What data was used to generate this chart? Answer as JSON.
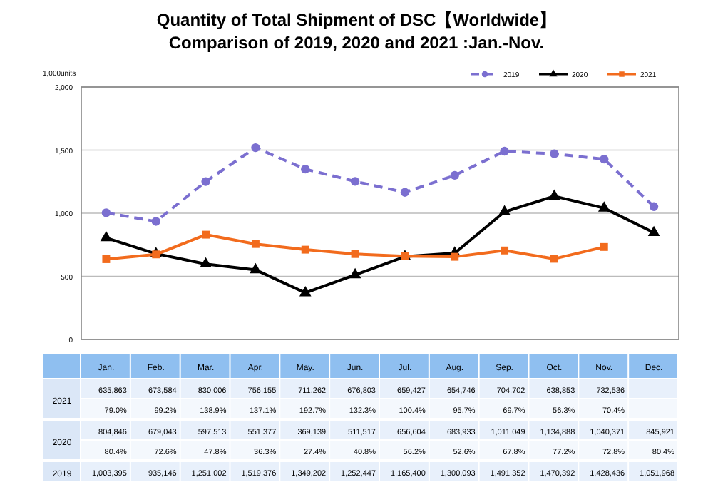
{
  "chart_data": {
    "type": "line",
    "title": "Quantity of Total Shipment of DSC【Worldwide】",
    "subtitle": "Comparison of 2019, 2020 and 2021 :Jan.-Nov.",
    "ylabel": "1,000units",
    "categories": [
      "Jan.",
      "Feb.",
      "Mar.",
      "Apr.",
      "May.",
      "Jun.",
      "Jul.",
      "Aug.",
      "Sep.",
      "Oct.",
      "Nov.",
      "Dec."
    ],
    "series": [
      {
        "name": "2019",
        "color": "#7b6fd0",
        "marker": "circle",
        "line_style": "dashed",
        "values": [
          1003.395,
          935.146,
          1251.002,
          1519.376,
          1349.202,
          1252.447,
          1165.4,
          1300.093,
          1491.352,
          1470.392,
          1428.436,
          1051.968
        ]
      },
      {
        "name": "2020",
        "color": "#000000",
        "marker": "triangle",
        "line_style": "solid",
        "values": [
          804.846,
          679.043,
          597.513,
          551.377,
          369.139,
          511.517,
          656.604,
          683.933,
          1011.049,
          1134.888,
          1040.371,
          845.921
        ]
      },
      {
        "name": "2021",
        "color": "#f26b1d",
        "marker": "square",
        "line_style": "solid",
        "values": [
          635.863,
          673.584,
          830.006,
          756.155,
          711.262,
          676.803,
          659.427,
          654.746,
          704.702,
          638.853,
          732.536,
          null
        ]
      }
    ],
    "annotations": [
      "635,863",
      "673,584",
      "830,006",
      "756,155",
      "711,262",
      "676,803",
      "659,427",
      "654,746",
      "704,702",
      "638,853",
      "732,536",
      "79.0%",
      "99.2%",
      "138.9%",
      "137.1%",
      "192.7%",
      "132.3%",
      "100.4%",
      "95.7%",
      "69.7%",
      "56.3%",
      "70.4%",
      "804,846",
      "679,043",
      "597,513",
      "551,377",
      "369,139",
      "511,517",
      "656,604",
      "683,933",
      "1,011,049",
      "1,134,888",
      "1,040,371",
      "845,921",
      "80.4%",
      "72.6%",
      "47.8%",
      "36.3%",
      "27.4%",
      "40.8%",
      "56.2%",
      "52.6%",
      "67.8%",
      "77.2%",
      "72.8%",
      "80.4%",
      "1,003,395",
      "935,146",
      "1,251,002",
      "1,519,376",
      "1,349,202",
      "1,252,447",
      "1,165,400",
      "1,300,093",
      "1,491,352",
      "1,470,392",
      "1,428,436",
      "1,051,968"
    ],
    "ylim": [
      0,
      2000
    ],
    "yticks": [
      0,
      500,
      {
        "value": 1000,
        "label": "1,000"
      },
      {
        "value": 1500,
        "label": "1,500"
      },
      {
        "value": 2000,
        "label": "2,000"
      }
    ],
    "grid": "y",
    "legend": "top right"
  }
}
